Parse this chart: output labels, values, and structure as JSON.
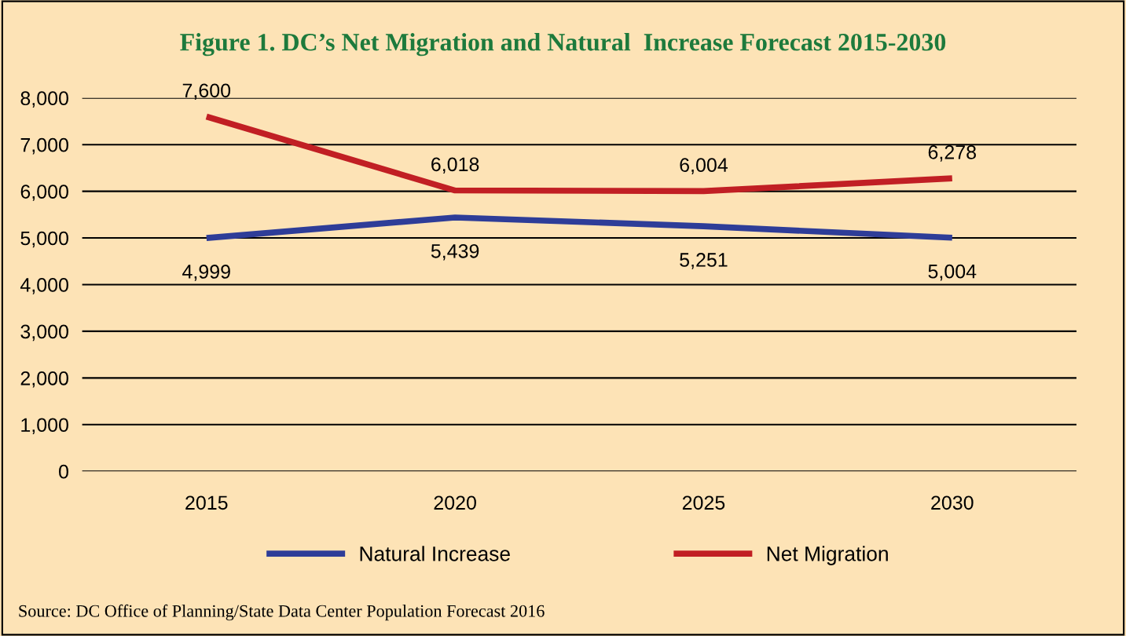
{
  "chart_data": {
    "type": "line",
    "title": "Figure 1. DC’s Net Migration and Natural  Increase Forecast 2015-2030",
    "categories": [
      "2015",
      "2020",
      "2025",
      "2030"
    ],
    "series": [
      {
        "name": "Natural Increase",
        "color": "#2e3d98",
        "values": [
          4999,
          5439,
          5251,
          5004
        ],
        "value_labels": [
          "4,999",
          "5,439",
          "5,251",
          "5,004"
        ]
      },
      {
        "name": "Net Migration",
        "color": "#c11f24",
        "values": [
          7600,
          6018,
          6004,
          6278
        ],
        "value_labels": [
          "7,600",
          "6,018",
          "6,004",
          "6,278"
        ]
      }
    ],
    "ylim": [
      0,
      8000
    ],
    "yticks": [
      {
        "value": 0,
        "label": "0"
      },
      {
        "value": 1000,
        "label": "1,000"
      },
      {
        "value": 2000,
        "label": "2,000"
      },
      {
        "value": 3000,
        "label": "3,000"
      },
      {
        "value": 4000,
        "label": "4,000"
      },
      {
        "value": 5000,
        "label": "5,000"
      },
      {
        "value": 6000,
        "label": "6,000"
      },
      {
        "value": 7000,
        "label": "7,000"
      },
      {
        "value": 8000,
        "label": "8,000"
      }
    ],
    "grid": "y",
    "legend": "bottom",
    "marker": "none",
    "line_style": "solid",
    "annotations": [
      "Source: DC Office of Planning/State Data Center Population Forecast 2016"
    ]
  }
}
